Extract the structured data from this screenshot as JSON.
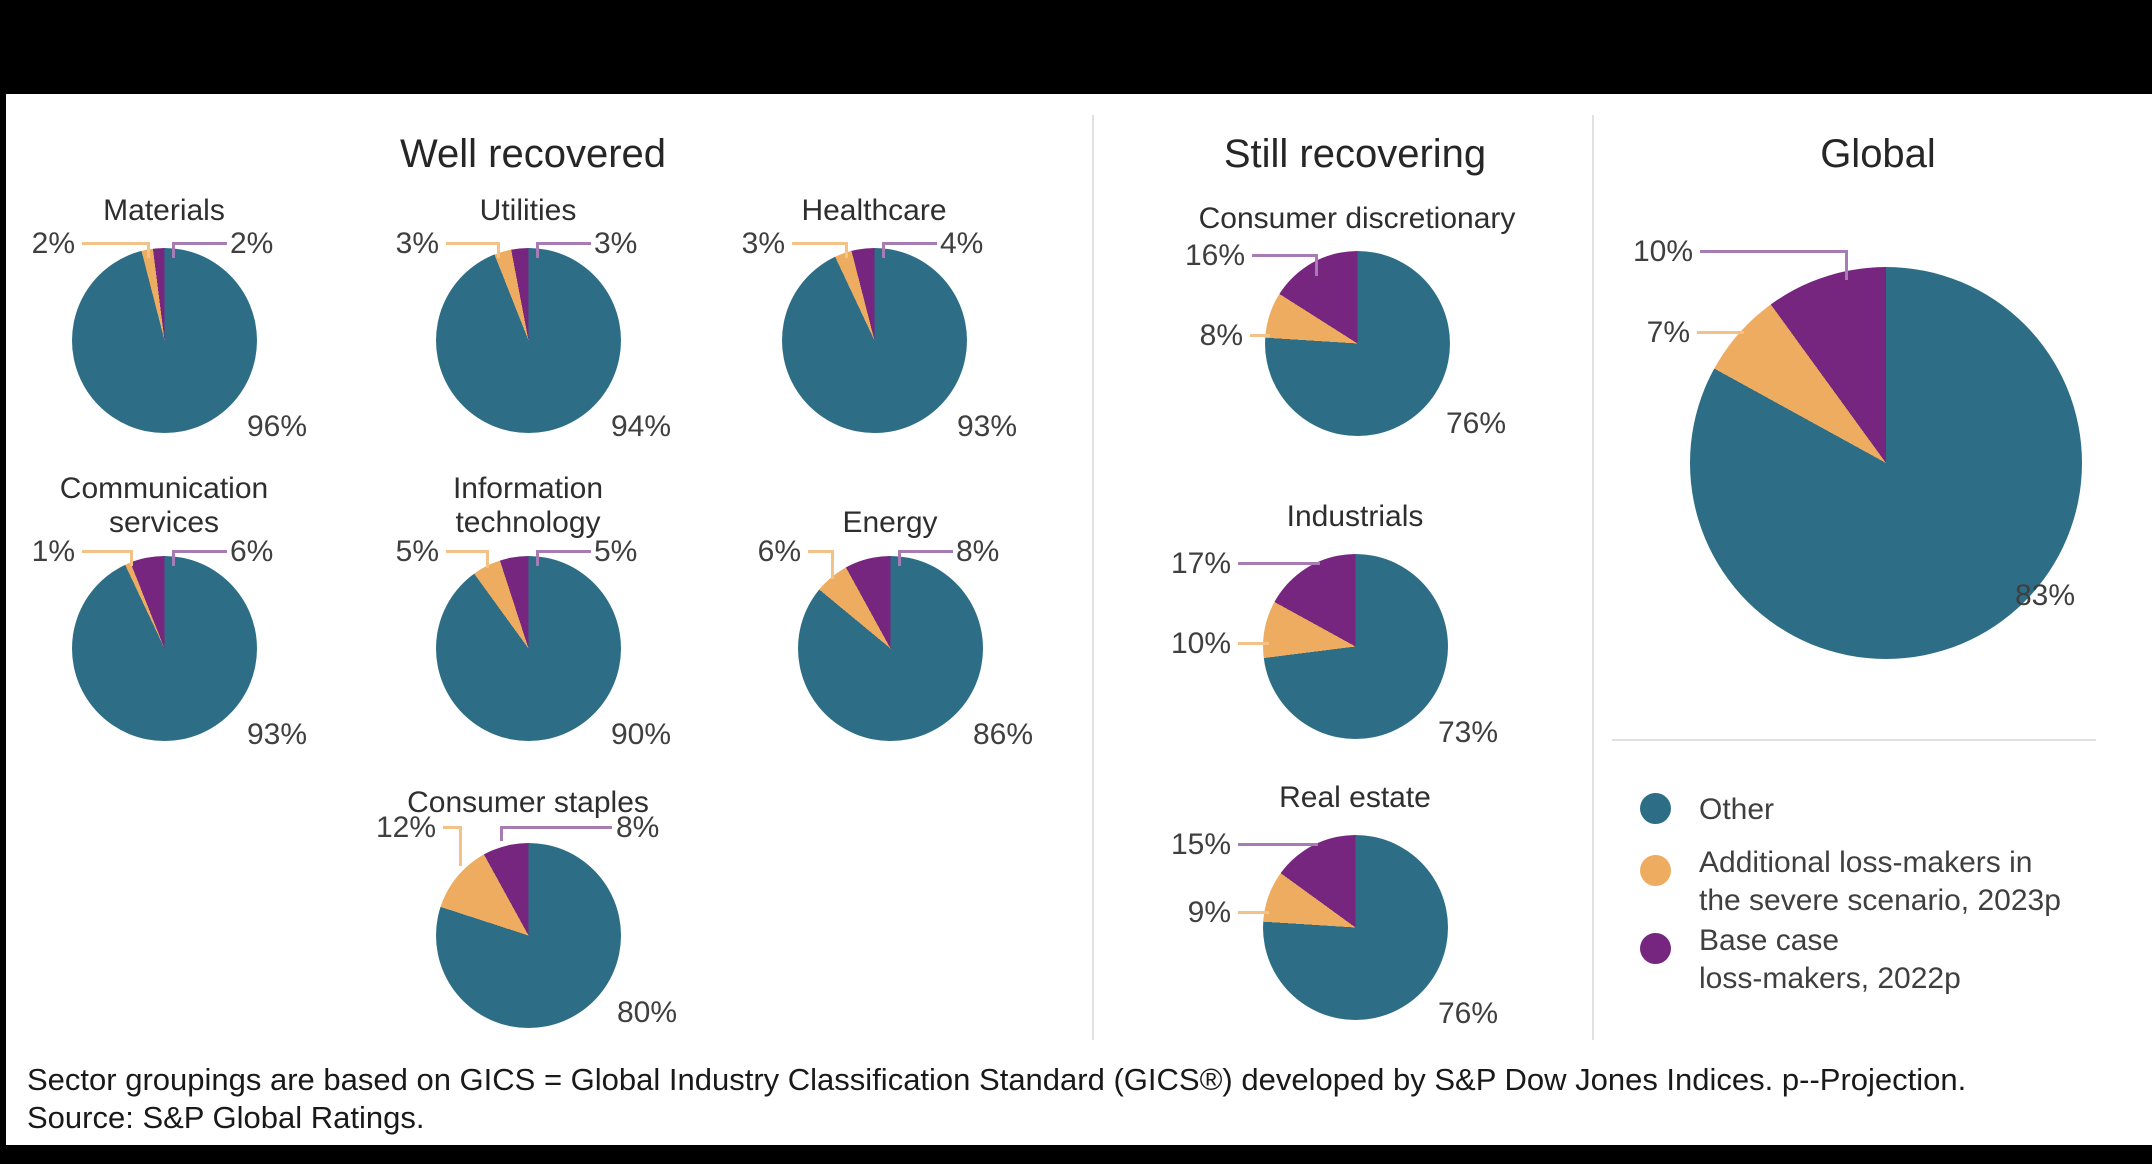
{
  "sections": [
    {
      "id": "well-recovered",
      "title": "Well recovered"
    },
    {
      "id": "still-recovering",
      "title": "Still recovering"
    },
    {
      "id": "global",
      "title": "Global"
    }
  ],
  "colors": {
    "other": "#2D6E86",
    "additional": "#EDAC5F",
    "base_case": "#76267F",
    "leader_additional": "#F2C289",
    "leader_base": "#A77BB3",
    "divider": "#E1E1E1",
    "background": "#FFFFFF",
    "letterbox": "#000000"
  },
  "legend": {
    "items": [
      {
        "id": "other",
        "color": "#2D6E86",
        "label_lines": [
          "Other"
        ]
      },
      {
        "id": "additional-loss-makers",
        "color": "#EDAC5F",
        "label_lines": [
          "Additional loss-makers in",
          "the severe scenario, 2023p"
        ]
      },
      {
        "id": "base-case-loss-makers",
        "color": "#76267F",
        "label_lines": [
          "Base case",
          "loss-makers, 2022p"
        ]
      }
    ]
  },
  "footnote_lines": [
    "Sector groupings are based on GICS = Global Industry Classification Standard (GICS®) developed by S&P Dow Jones Indices. p--Projection.",
    "Source: S&P Global Ratings."
  ],
  "chart_data": [
    {
      "type": "pie",
      "section": "Well recovered",
      "title": "Materials",
      "title_lines": [
        "Materials"
      ],
      "values": {
        "other": 96,
        "additional": 2,
        "base_case": 2
      },
      "labels": {
        "other": "96%",
        "additional": "2%",
        "base_case": "2%"
      }
    },
    {
      "type": "pie",
      "section": "Well recovered",
      "title": "Utilities",
      "title_lines": [
        "Utilities"
      ],
      "values": {
        "other": 94,
        "additional": 3,
        "base_case": 3
      },
      "labels": {
        "other": "94%",
        "additional": "3%",
        "base_case": "3%"
      }
    },
    {
      "type": "pie",
      "section": "Well recovered",
      "title": "Healthcare",
      "title_lines": [
        "Healthcare"
      ],
      "values": {
        "other": 93,
        "additional": 3,
        "base_case": 4
      },
      "labels": {
        "other": "93%",
        "additional": "3%",
        "base_case": "4%"
      }
    },
    {
      "type": "pie",
      "section": "Well recovered",
      "title": "Communication services",
      "title_lines": [
        "Communication",
        "services"
      ],
      "values": {
        "other": 93,
        "additional": 1,
        "base_case": 6
      },
      "labels": {
        "other": "93%",
        "additional": "1%",
        "base_case": "6%"
      }
    },
    {
      "type": "pie",
      "section": "Well recovered",
      "title": "Information technology",
      "title_lines": [
        "Information",
        "technology"
      ],
      "values": {
        "other": 90,
        "additional": 5,
        "base_case": 5
      },
      "labels": {
        "other": "90%",
        "additional": "5%",
        "base_case": "5%"
      }
    },
    {
      "type": "pie",
      "section": "Well recovered",
      "title": "Energy",
      "title_lines": [
        "Energy"
      ],
      "values": {
        "other": 86,
        "additional": 6,
        "base_case": 8
      },
      "labels": {
        "other": "86%",
        "additional": "6%",
        "base_case": "8%"
      }
    },
    {
      "type": "pie",
      "section": "Well recovered",
      "title": "Consumer staples",
      "title_lines": [
        "Consumer staples"
      ],
      "values": {
        "other": 80,
        "additional": 12,
        "base_case": 8
      },
      "labels": {
        "other": "80%",
        "additional": "12%",
        "base_case": "8%"
      }
    },
    {
      "type": "pie",
      "section": "Still recovering",
      "title": "Consumer discretionary",
      "title_lines": [
        "Consumer discretionary"
      ],
      "values": {
        "other": 76,
        "additional": 8,
        "base_case": 16
      },
      "labels": {
        "other": "76%",
        "additional": "8%",
        "base_case": "16%"
      }
    },
    {
      "type": "pie",
      "section": "Still recovering",
      "title": "Industrials",
      "title_lines": [
        "Industrials"
      ],
      "values": {
        "other": 73,
        "additional": 10,
        "base_case": 17
      },
      "labels": {
        "other": "73%",
        "additional": "10%",
        "base_case": "17%"
      }
    },
    {
      "type": "pie",
      "section": "Still recovering",
      "title": "Real estate",
      "title_lines": [
        "Real estate"
      ],
      "values": {
        "other": 76,
        "additional": 9,
        "base_case": 15
      },
      "labels": {
        "other": "76%",
        "additional": "9%",
        "base_case": "15%"
      }
    },
    {
      "type": "pie",
      "section": "Global",
      "title": "Global",
      "values": {
        "other": 83,
        "additional": 7,
        "base_case": 10
      },
      "labels": {
        "other": "83%",
        "additional": "7%",
        "base_case": "10%"
      }
    }
  ]
}
